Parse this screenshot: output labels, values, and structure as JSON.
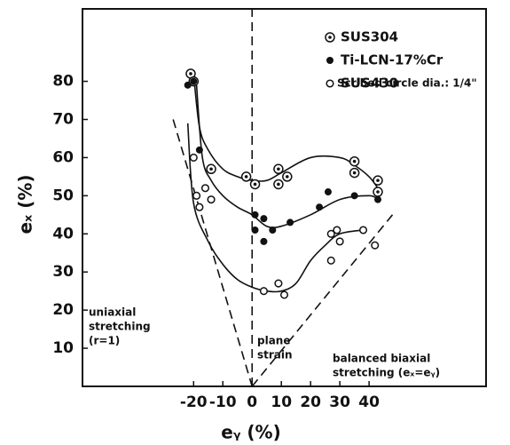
{
  "chart_data": {
    "type": "scatter",
    "x_label": "eᵧ (%)",
    "y_label": "eₓ (%)",
    "xlim": [
      -58,
      80
    ],
    "ylim": [
      0,
      99
    ],
    "xticks": [
      -20,
      -10,
      0,
      10,
      20,
      30,
      40
    ],
    "yticks": [
      10,
      20,
      30,
      40,
      50,
      60,
      70,
      80
    ],
    "legend_note": "Scribed circle dia.: 1/4\"",
    "series": [
      {
        "name": "SUS304",
        "color": "#111111",
        "marker": "double-circle",
        "x": [
          -21,
          -20,
          -14,
          -2,
          1,
          9,
          9,
          12,
          35,
          35,
          43,
          43
        ],
        "values": [
          82,
          80,
          57,
          55,
          53,
          57,
          53,
          55,
          59,
          56,
          54,
          51
        ]
      },
      {
        "name": "Ti-LCN-17%Cr",
        "color": "#111111",
        "marker": "filled",
        "x": [
          -22,
          -20,
          -18,
          1,
          1,
          4,
          4,
          7,
          13,
          23,
          26,
          35,
          43
        ],
        "values": [
          79,
          80,
          62,
          45,
          41,
          44,
          38,
          41,
          43,
          47,
          51,
          50,
          49
        ]
      },
      {
        "name": "SUS430",
        "color": "#111111",
        "marker": "open",
        "x": [
          -20,
          -19,
          -18,
          -16,
          -14,
          4,
          9,
          11,
          27,
          29,
          27,
          30,
          38,
          42
        ],
        "values": [
          60,
          50,
          47,
          52,
          49,
          25,
          27,
          24,
          40,
          41,
          33,
          38,
          41,
          37
        ]
      }
    ],
    "fit_curves": [
      {
        "x": [
          -20,
          -18,
          -15,
          -10,
          -5,
          0,
          5,
          10,
          20,
          30,
          35,
          40,
          43
        ],
        "values": [
          82,
          68,
          62,
          57,
          55,
          54,
          54,
          56,
          60,
          60,
          58,
          55,
          52
        ]
      },
      {
        "x": [
          -19,
          -17,
          -14,
          -10,
          -5,
          0,
          5,
          10,
          20,
          30,
          40,
          43
        ],
        "values": [
          79,
          60,
          54,
          50,
          47,
          45,
          42,
          42,
          45,
          49,
          50,
          49
        ]
      },
      {
        "x": [
          -22,
          -20,
          -15,
          -10,
          -5,
          0,
          5,
          10,
          15,
          20,
          25,
          30,
          38
        ],
        "values": [
          69,
          48,
          38,
          32,
          28,
          26,
          25,
          25,
          27,
          33,
          37,
          40,
          41
        ]
      }
    ],
    "reference_lines": [
      {
        "label": [
          "uniaxial",
          "stretching",
          "(r=1)"
        ],
        "x": [
          -27,
          0
        ],
        "values": [
          70,
          0
        ]
      },
      {
        "label": [
          "plane",
          "strain"
        ],
        "x": [
          0,
          0
        ],
        "values": [
          0,
          99
        ]
      },
      {
        "label": [
          "balanced biaxial",
          "stretching (eₓ=eᵧ)"
        ],
        "x": [
          0,
          48
        ],
        "values": [
          0,
          45
        ]
      }
    ]
  }
}
